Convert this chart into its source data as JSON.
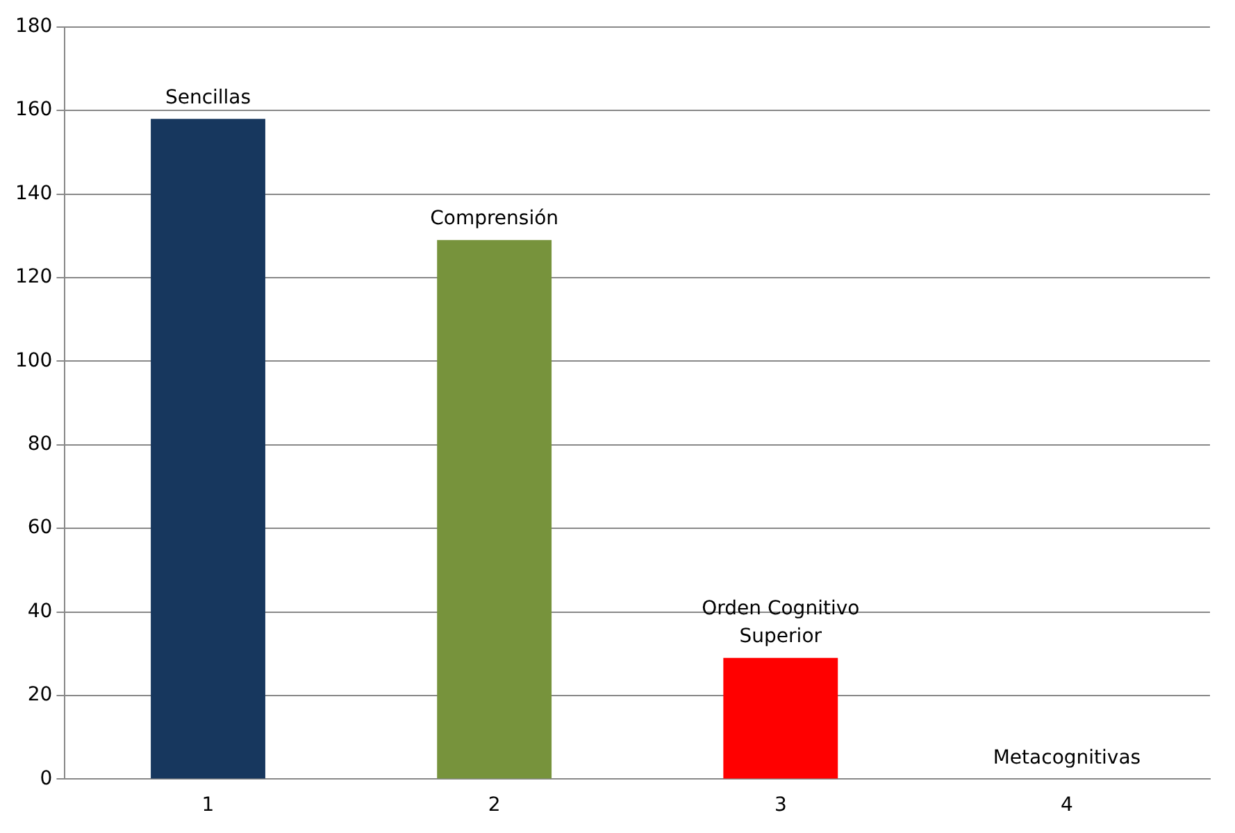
{
  "chart_data": {
    "type": "bar",
    "categories": [
      "1",
      "2",
      "3",
      "4"
    ],
    "values": [
      158,
      129,
      29,
      0
    ],
    "colors": [
      "#17375e",
      "#77933c",
      "#ff0000",
      "#4f81bd"
    ],
    "ylim": [
      0,
      180
    ],
    "yticks": [
      0,
      20,
      40,
      60,
      80,
      100,
      120,
      140,
      160,
      180
    ],
    "grid": "y",
    "legend": false,
    "annotations": [
      {
        "text": "Sencillas",
        "x": "1",
        "y": 158
      },
      {
        "text": "Comprensión",
        "x": "2",
        "y": 129
      },
      {
        "text": "Orden Cognitivo Superior",
        "x": "3",
        "y": 29
      },
      {
        "text": "Metacognitivas",
        "x": "4",
        "y": 0
      }
    ]
  }
}
